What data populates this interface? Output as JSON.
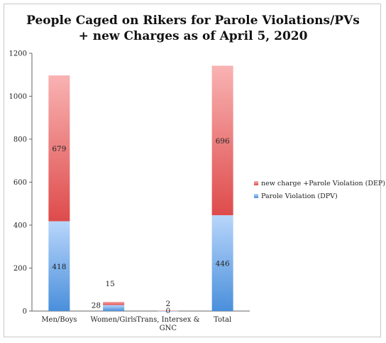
{
  "chart_data": {
    "type": "bar",
    "stacked": true,
    "title": "People Caged on Rikers for Parole Violations/PVs",
    "subtitle": "+ new Charges as of April 5, 2020",
    "categories": [
      "Men/Boys",
      "Women/Girls",
      "Trans, Intersex &",
      "Total"
    ],
    "category_second_lines": [
      "",
      "",
      "GNC",
      ""
    ],
    "series": [
      {
        "name": "Parole Violation (DPV)",
        "values": [
          418,
          28,
          0,
          446
        ],
        "labels": [
          "418",
          "28",
          "0",
          "446"
        ],
        "color_top": "#b8d6fb",
        "color_bottom": "#4a8fdb"
      },
      {
        "name": "new charge +Parole Violation (DEP)",
        "values": [
          679,
          15,
          2,
          696
        ],
        "labels": [
          "679",
          "15",
          "2",
          "696"
        ],
        "color_top": "#f9b3b3",
        "color_bottom": "#de4b4b"
      }
    ],
    "ylim": [
      0,
      1200
    ],
    "yticks": [
      0,
      200,
      400,
      600,
      800,
      1000,
      1200
    ],
    "ytick_labels": [
      "0",
      "200",
      "400",
      "600",
      "800",
      "1000",
      "1200"
    ],
    "grid": false,
    "legend_position": "right"
  }
}
